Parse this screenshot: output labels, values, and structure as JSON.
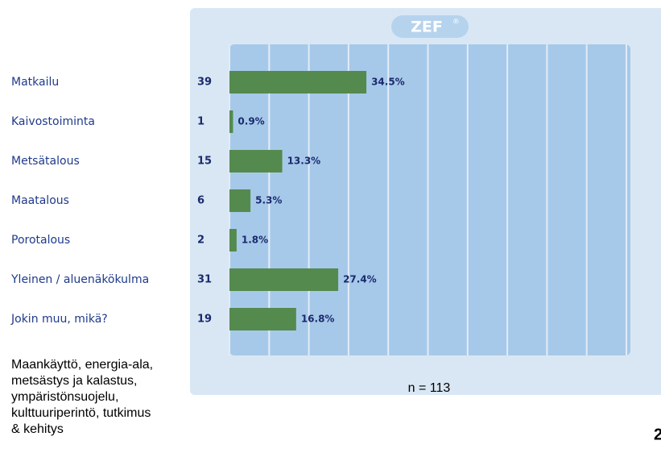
{
  "chart_data": {
    "type": "barh",
    "logo": "ZEF",
    "logo_mark": "®",
    "categories": [
      "Matkailu",
      "Kaivostoiminta",
      "Metsätalous",
      "Maatalous",
      "Porotalous",
      "Yleinen / aluenäkökulma",
      "Jokin muu, mikä?"
    ],
    "counts": [
      39,
      1,
      15,
      6,
      2,
      31,
      19
    ],
    "values": [
      34.5,
      0.9,
      13.3,
      5.3,
      1.8,
      27.4,
      16.8
    ],
    "value_labels": [
      "34.5%",
      "0.9%",
      "13.3%",
      "5.3%",
      "1.8%",
      "27.4%",
      "16.8%"
    ],
    "color": "#548a4e",
    "xlim": [
      0,
      100
    ],
    "xticks": [
      0,
      10,
      20,
      30,
      40,
      50,
      60,
      70,
      80,
      90,
      100
    ],
    "grid": true,
    "footnote": "n = 113"
  },
  "note": [
    "Maankäyttö, energia-ala,",
    "metsästys ja kalastus,",
    "ympäristönsuojelu,",
    "kulttuuriperintö, tutkimus",
    "& kehitys"
  ],
  "page_number": "2"
}
